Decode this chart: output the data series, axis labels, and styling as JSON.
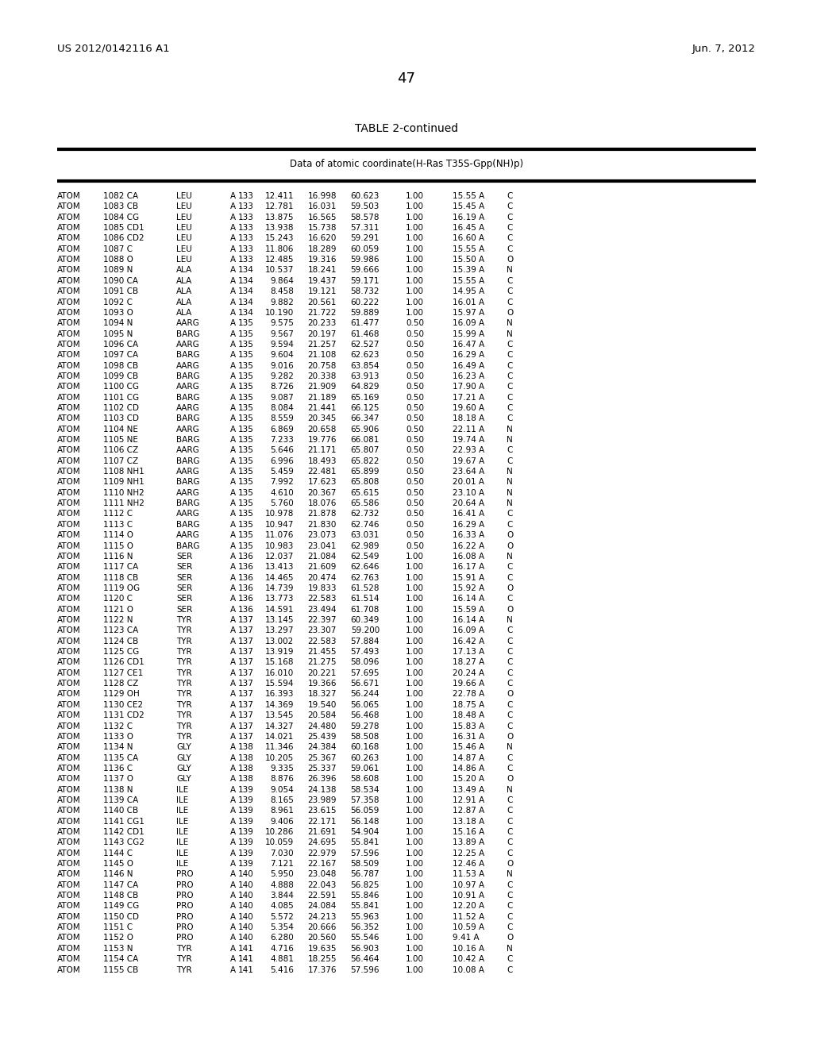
{
  "header_left": "US 2012/0142116 A1",
  "header_right": "Jun. 7, 2012",
  "page_number": "47",
  "table_title": "TABLE 2-continued",
  "table_subtitle": "Data of atomic coordinate(H-Ras T35S-Gpp(NH)p)",
  "rows": [
    [
      "ATOM",
      "1082",
      "CA",
      "LEU",
      "A",
      "133",
      "12.411",
      "16.998",
      "60.623",
      "1.00",
      "15.55",
      "A",
      "C"
    ],
    [
      "ATOM",
      "1083",
      "CB",
      "LEU",
      "A",
      "133",
      "12.781",
      "16.031",
      "59.503",
      "1.00",
      "15.45",
      "A",
      "C"
    ],
    [
      "ATOM",
      "1084",
      "CG",
      "LEU",
      "A",
      "133",
      "13.875",
      "16.565",
      "58.578",
      "1.00",
      "16.19",
      "A",
      "C"
    ],
    [
      "ATOM",
      "1085",
      "CD1",
      "LEU",
      "A",
      "133",
      "13.938",
      "15.738",
      "57.311",
      "1.00",
      "16.45",
      "A",
      "C"
    ],
    [
      "ATOM",
      "1086",
      "CD2",
      "LEU",
      "A",
      "133",
      "15.243",
      "16.620",
      "59.291",
      "1.00",
      "16.60",
      "A",
      "C"
    ],
    [
      "ATOM",
      "1087",
      "C",
      "LEU",
      "A",
      "133",
      "11.806",
      "18.289",
      "60.059",
      "1.00",
      "15.55",
      "A",
      "C"
    ],
    [
      "ATOM",
      "1088",
      "O",
      "LEU",
      "A",
      "133",
      "12.485",
      "19.316",
      "59.986",
      "1.00",
      "15.50",
      "A",
      "O"
    ],
    [
      "ATOM",
      "1089",
      "N",
      "ALA",
      "A",
      "134",
      "10.537",
      "18.241",
      "59.666",
      "1.00",
      "15.39",
      "A",
      "N"
    ],
    [
      "ATOM",
      "1090",
      "CA",
      "ALA",
      "A",
      "134",
      "9.864",
      "19.437",
      "59.171",
      "1.00",
      "15.55",
      "A",
      "C"
    ],
    [
      "ATOM",
      "1091",
      "CB",
      "ALA",
      "A",
      "134",
      "8.458",
      "19.121",
      "58.732",
      "1.00",
      "14.95",
      "A",
      "C"
    ],
    [
      "ATOM",
      "1092",
      "C",
      "ALA",
      "A",
      "134",
      "9.882",
      "20.561",
      "60.222",
      "1.00",
      "16.01",
      "A",
      "C"
    ],
    [
      "ATOM",
      "1093",
      "O",
      "ALA",
      "A",
      "134",
      "10.190",
      "21.722",
      "59.889",
      "1.00",
      "15.97",
      "A",
      "O"
    ],
    [
      "ATOM",
      "1094",
      "N",
      "AARG",
      "A",
      "135",
      "9.575",
      "20.233",
      "61.477",
      "0.50",
      "16.09",
      "A",
      "N"
    ],
    [
      "ATOM",
      "1095",
      "N",
      "BARG",
      "A",
      "135",
      "9.567",
      "20.197",
      "61.468",
      "0.50",
      "15.99",
      "A",
      "N"
    ],
    [
      "ATOM",
      "1096",
      "CA",
      "AARG",
      "A",
      "135",
      "9.594",
      "21.257",
      "62.527",
      "0.50",
      "16.47",
      "A",
      "C"
    ],
    [
      "ATOM",
      "1097",
      "CA",
      "BARG",
      "A",
      "135",
      "9.604",
      "21.108",
      "62.623",
      "0.50",
      "16.29",
      "A",
      "C"
    ],
    [
      "ATOM",
      "1098",
      "CB",
      "AARG",
      "A",
      "135",
      "9.016",
      "20.758",
      "63.854",
      "0.50",
      "16.49",
      "A",
      "C"
    ],
    [
      "ATOM",
      "1099",
      "CB",
      "BARG",
      "A",
      "135",
      "9.282",
      "20.338",
      "63.913",
      "0.50",
      "16.23",
      "A",
      "C"
    ],
    [
      "ATOM",
      "1100",
      "CG",
      "AARG",
      "A",
      "135",
      "8.726",
      "21.909",
      "64.829",
      "0.50",
      "17.90",
      "A",
      "C"
    ],
    [
      "ATOM",
      "1101",
      "CG",
      "BARG",
      "A",
      "135",
      "9.087",
      "21.189",
      "65.169",
      "0.50",
      "17.21",
      "A",
      "C"
    ],
    [
      "ATOM",
      "1102",
      "CD",
      "AARG",
      "A",
      "135",
      "8.084",
      "21.441",
      "66.125",
      "0.50",
      "19.60",
      "A",
      "C"
    ],
    [
      "ATOM",
      "1103",
      "CD",
      "BARG",
      "A",
      "135",
      "8.559",
      "20.345",
      "66.347",
      "0.50",
      "18.18",
      "A",
      "C"
    ],
    [
      "ATOM",
      "1104",
      "NE",
      "AARG",
      "A",
      "135",
      "6.869",
      "20.658",
      "65.906",
      "0.50",
      "22.11",
      "A",
      "N"
    ],
    [
      "ATOM",
      "1105",
      "NE",
      "BARG",
      "A",
      "135",
      "7.233",
      "19.776",
      "66.081",
      "0.50",
      "19.74",
      "A",
      "N"
    ],
    [
      "ATOM",
      "1106",
      "CZ",
      "AARG",
      "A",
      "135",
      "5.646",
      "21.171",
      "65.807",
      "0.50",
      "22.93",
      "A",
      "C"
    ],
    [
      "ATOM",
      "1107",
      "CZ",
      "BARG",
      "A",
      "135",
      "6.996",
      "18.493",
      "65.822",
      "0.50",
      "19.67",
      "A",
      "C"
    ],
    [
      "ATOM",
      "1108",
      "NH1",
      "AARG",
      "A",
      "135",
      "5.459",
      "22.481",
      "65.899",
      "0.50",
      "23.64",
      "A",
      "N"
    ],
    [
      "ATOM",
      "1109",
      "NH1",
      "BARG",
      "A",
      "135",
      "7.992",
      "17.623",
      "65.808",
      "0.50",
      "20.01",
      "A",
      "N"
    ],
    [
      "ATOM",
      "1110",
      "NH2",
      "AARG",
      "A",
      "135",
      "4.610",
      "20.367",
      "65.615",
      "0.50",
      "23.10",
      "A",
      "N"
    ],
    [
      "ATOM",
      "1111",
      "NH2",
      "BARG",
      "A",
      "135",
      "5.760",
      "18.076",
      "65.586",
      "0.50",
      "20.64",
      "A",
      "N"
    ],
    [
      "ATOM",
      "1112",
      "C",
      "AARG",
      "A",
      "135",
      "10.978",
      "21.878",
      "62.732",
      "0.50",
      "16.41",
      "A",
      "C"
    ],
    [
      "ATOM",
      "1113",
      "C",
      "BARG",
      "A",
      "135",
      "10.947",
      "21.830",
      "62.746",
      "0.50",
      "16.29",
      "A",
      "C"
    ],
    [
      "ATOM",
      "1114",
      "O",
      "AARG",
      "A",
      "135",
      "11.076",
      "23.073",
      "63.031",
      "0.50",
      "16.33",
      "A",
      "O"
    ],
    [
      "ATOM",
      "1115",
      "O",
      "BARG",
      "A",
      "135",
      "10.983",
      "23.041",
      "62.989",
      "0.50",
      "16.22",
      "A",
      "O"
    ],
    [
      "ATOM",
      "1116",
      "N",
      "SER",
      "A",
      "136",
      "12.037",
      "21.084",
      "62.549",
      "1.00",
      "16.08",
      "A",
      "N"
    ],
    [
      "ATOM",
      "1117",
      "CA",
      "SER",
      "A",
      "136",
      "13.413",
      "21.609",
      "62.646",
      "1.00",
      "16.17",
      "A",
      "C"
    ],
    [
      "ATOM",
      "1118",
      "CB",
      "SER",
      "A",
      "136",
      "14.465",
      "20.474",
      "62.763",
      "1.00",
      "15.91",
      "A",
      "C"
    ],
    [
      "ATOM",
      "1119",
      "OG",
      "SER",
      "A",
      "136",
      "14.739",
      "19.833",
      "61.528",
      "1.00",
      "15.92",
      "A",
      "O"
    ],
    [
      "ATOM",
      "1120",
      "C",
      "SER",
      "A",
      "136",
      "13.773",
      "22.583",
      "61.514",
      "1.00",
      "16.14",
      "A",
      "C"
    ],
    [
      "ATOM",
      "1121",
      "O",
      "SER",
      "A",
      "136",
      "14.591",
      "23.494",
      "61.708",
      "1.00",
      "15.59",
      "A",
      "O"
    ],
    [
      "ATOM",
      "1122",
      "N",
      "TYR",
      "A",
      "137",
      "13.145",
      "22.397",
      "60.349",
      "1.00",
      "16.14",
      "A",
      "N"
    ],
    [
      "ATOM",
      "1123",
      "CA",
      "TYR",
      "A",
      "137",
      "13.297",
      "23.307",
      "59.200",
      "1.00",
      "16.09",
      "A",
      "C"
    ],
    [
      "ATOM",
      "1124",
      "CB",
      "TYR",
      "A",
      "137",
      "13.002",
      "22.583",
      "57.884",
      "1.00",
      "16.42",
      "A",
      "C"
    ],
    [
      "ATOM",
      "1125",
      "CG",
      "TYR",
      "A",
      "137",
      "13.919",
      "21.455",
      "57.493",
      "1.00",
      "17.13",
      "A",
      "C"
    ],
    [
      "ATOM",
      "1126",
      "CD1",
      "TYR",
      "A",
      "137",
      "15.168",
      "21.275",
      "58.096",
      "1.00",
      "18.27",
      "A",
      "C"
    ],
    [
      "ATOM",
      "1127",
      "CE1",
      "TYR",
      "A",
      "137",
      "16.010",
      "20.221",
      "57.695",
      "1.00",
      "20.24",
      "A",
      "C"
    ],
    [
      "ATOM",
      "1128",
      "CZ",
      "TYR",
      "A",
      "137",
      "15.594",
      "19.366",
      "56.671",
      "1.00",
      "19.66",
      "A",
      "C"
    ],
    [
      "ATOM",
      "1129",
      "OH",
      "TYR",
      "A",
      "137",
      "16.393",
      "18.327",
      "56.244",
      "1.00",
      "22.78",
      "A",
      "O"
    ],
    [
      "ATOM",
      "1130",
      "CE2",
      "TYR",
      "A",
      "137",
      "14.369",
      "19.540",
      "56.065",
      "1.00",
      "18.75",
      "A",
      "C"
    ],
    [
      "ATOM",
      "1131",
      "CD2",
      "TYR",
      "A",
      "137",
      "13.545",
      "20.584",
      "56.468",
      "1.00",
      "18.48",
      "A",
      "C"
    ],
    [
      "ATOM",
      "1132",
      "C",
      "TYR",
      "A",
      "137",
      "14.327",
      "24.480",
      "59.278",
      "1.00",
      "15.83",
      "A",
      "C"
    ],
    [
      "ATOM",
      "1133",
      "O",
      "TYR",
      "A",
      "137",
      "14.021",
      "25.439",
      "58.508",
      "1.00",
      "16.31",
      "A",
      "O"
    ],
    [
      "ATOM",
      "1134",
      "N",
      "GLY",
      "A",
      "138",
      "11.346",
      "24.384",
      "60.168",
      "1.00",
      "15.46",
      "A",
      "N"
    ],
    [
      "ATOM",
      "1135",
      "CA",
      "GLY",
      "A",
      "138",
      "10.205",
      "25.367",
      "60.263",
      "1.00",
      "14.87",
      "A",
      "C"
    ],
    [
      "ATOM",
      "1136",
      "C",
      "GLY",
      "A",
      "138",
      "9.335",
      "25.337",
      "59.061",
      "1.00",
      "14.86",
      "A",
      "C"
    ],
    [
      "ATOM",
      "1137",
      "O",
      "GLY",
      "A",
      "138",
      "8.876",
      "26.396",
      "58.608",
      "1.00",
      "15.20",
      "A",
      "O"
    ],
    [
      "ATOM",
      "1138",
      "N",
      "ILE",
      "A",
      "139",
      "9.054",
      "24.138",
      "58.534",
      "1.00",
      "13.49",
      "A",
      "N"
    ],
    [
      "ATOM",
      "1139",
      "CA",
      "ILE",
      "A",
      "139",
      "8.165",
      "23.989",
      "57.358",
      "1.00",
      "12.91",
      "A",
      "C"
    ],
    [
      "ATOM",
      "1140",
      "CB",
      "ILE",
      "A",
      "139",
      "8.961",
      "23.615",
      "56.059",
      "1.00",
      "12.87",
      "A",
      "C"
    ],
    [
      "ATOM",
      "1141",
      "CG1",
      "ILE",
      "A",
      "139",
      "9.406",
      "22.171",
      "56.148",
      "1.00",
      "13.18",
      "A",
      "C"
    ],
    [
      "ATOM",
      "1142",
      "CD1",
      "ILE",
      "A",
      "139",
      "10.286",
      "21.691",
      "54.904",
      "1.00",
      "15.16",
      "A",
      "C"
    ],
    [
      "ATOM",
      "1143",
      "CG2",
      "ILE",
      "A",
      "139",
      "10.059",
      "24.695",
      "55.841",
      "1.00",
      "13.89",
      "A",
      "C"
    ],
    [
      "ATOM",
      "1144",
      "C",
      "ILE",
      "A",
      "139",
      "7.030",
      "22.979",
      "57.596",
      "1.00",
      "12.25",
      "A",
      "C"
    ],
    [
      "ATOM",
      "1145",
      "O",
      "ILE",
      "A",
      "139",
      "7.121",
      "22.167",
      "58.509",
      "1.00",
      "12.46",
      "A",
      "O"
    ],
    [
      "ATOM",
      "1146",
      "N",
      "PRO",
      "A",
      "140",
      "5.950",
      "23.048",
      "56.787",
      "1.00",
      "11.53",
      "A",
      "N"
    ],
    [
      "ATOM",
      "1147",
      "CA",
      "PRO",
      "A",
      "140",
      "4.888",
      "22.043",
      "56.825",
      "1.00",
      "10.97",
      "A",
      "C"
    ],
    [
      "ATOM",
      "1148",
      "CB",
      "PRO",
      "A",
      "140",
      "3.844",
      "22.591",
      "55.846",
      "1.00",
      "10.91",
      "A",
      "C"
    ],
    [
      "ATOM",
      "1149",
      "CG",
      "PRO",
      "A",
      "140",
      "4.085",
      "24.084",
      "55.841",
      "1.00",
      "12.20",
      "A",
      "C"
    ],
    [
      "ATOM",
      "1150",
      "CD",
      "PRO",
      "A",
      "140",
      "5.572",
      "24.213",
      "55.963",
      "1.00",
      "11.52",
      "A",
      "C"
    ],
    [
      "ATOM",
      "1151",
      "C",
      "PRO",
      "A",
      "140",
      "5.354",
      "20.666",
      "56.352",
      "1.00",
      "10.59",
      "A",
      "C"
    ],
    [
      "ATOM",
      "1152",
      "O",
      "PRO",
      "A",
      "140",
      "6.280",
      "20.560",
      "55.546",
      "1.00",
      "9.41",
      "A",
      "O"
    ],
    [
      "ATOM",
      "1153",
      "N",
      "TYR",
      "A",
      "141",
      "4.716",
      "19.635",
      "56.903",
      "1.00",
      "10.16",
      "A",
      "N"
    ],
    [
      "ATOM",
      "1154",
      "CA",
      "TYR",
      "A",
      "141",
      "4.881",
      "18.255",
      "56.464",
      "1.00",
      "10.42",
      "A",
      "C"
    ],
    [
      "ATOM",
      "1155",
      "CB",
      "TYR",
      "A",
      "141",
      "5.416",
      "17.376",
      "57.596",
      "1.00",
      "10.08",
      "A",
      "C"
    ]
  ],
  "bg_color": "#ffffff",
  "text_color": "#000000",
  "font_size_header": 9.5,
  "font_size_data": 7.5,
  "font_size_title": 10.0,
  "font_size_subtitle": 8.5,
  "font_size_page": 13.0
}
